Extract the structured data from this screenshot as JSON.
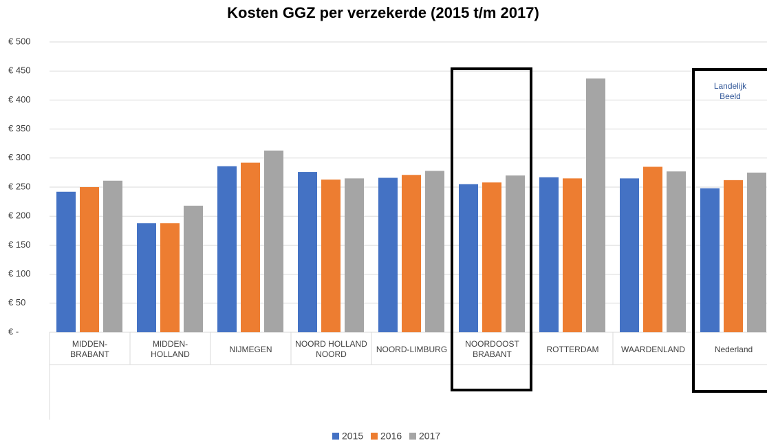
{
  "chart_data": {
    "type": "bar",
    "title": "Kosten GGZ per verzekerde (2015 t/m 2017)",
    "categories": [
      "MIDDEN-\nBRABANT",
      "MIDDEN-\nHOLLAND",
      "NIJMEGEN",
      "NOORD HOLLAND\nNOORD",
      "NOORD-LIMBURG",
      "NOORDOOST\nBRABANT",
      "ROTTERDAM",
      "WAARDENLAND",
      "Nederland"
    ],
    "series": [
      {
        "name": "2015",
        "color": "#4472c4",
        "values": [
          242,
          188,
          286,
          276,
          266,
          255,
          267,
          265,
          248
        ]
      },
      {
        "name": "2016",
        "color": "#ed7d31",
        "values": [
          250,
          188,
          292,
          263,
          271,
          258,
          265,
          285,
          262
        ]
      },
      {
        "name": "2017",
        "color": "#a5a5a5",
        "values": [
          261,
          218,
          313,
          265,
          278,
          270,
          437,
          277,
          275
        ]
      }
    ],
    "ylim": [
      0,
      500
    ],
    "yticks": [
      {
        "value": 0,
        "label": "€ -"
      },
      {
        "value": 50,
        "label": "€ 50"
      },
      {
        "value": 100,
        "label": "€ 100"
      },
      {
        "value": 150,
        "label": "€ 150"
      },
      {
        "value": 200,
        "label": "€ 200"
      },
      {
        "value": 250,
        "label": "€ 250"
      },
      {
        "value": 300,
        "label": "€ 300"
      },
      {
        "value": 350,
        "label": "€ 350"
      },
      {
        "value": 400,
        "label": "€ 400"
      },
      {
        "value": 450,
        "label": "€ 450"
      },
      {
        "value": 500,
        "label": "€ 500"
      }
    ],
    "grid": true,
    "legend": "bottom",
    "annotation": "Landelijk\nBeeld"
  }
}
